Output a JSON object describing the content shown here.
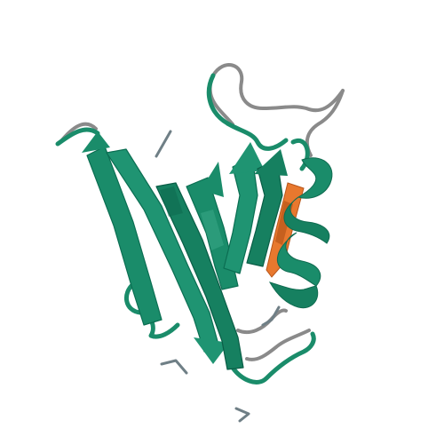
{
  "colors": {
    "background": "#ffffff",
    "chain_main": "#1a8c6a",
    "chain_dark": "#0f6b50",
    "chain_light": "#3aa887",
    "highlight_strand": "#e8782e",
    "highlight_dark": "#b8561a",
    "coil_grey": "#8a8a8a",
    "ligand": "#6f7f86"
  }
}
